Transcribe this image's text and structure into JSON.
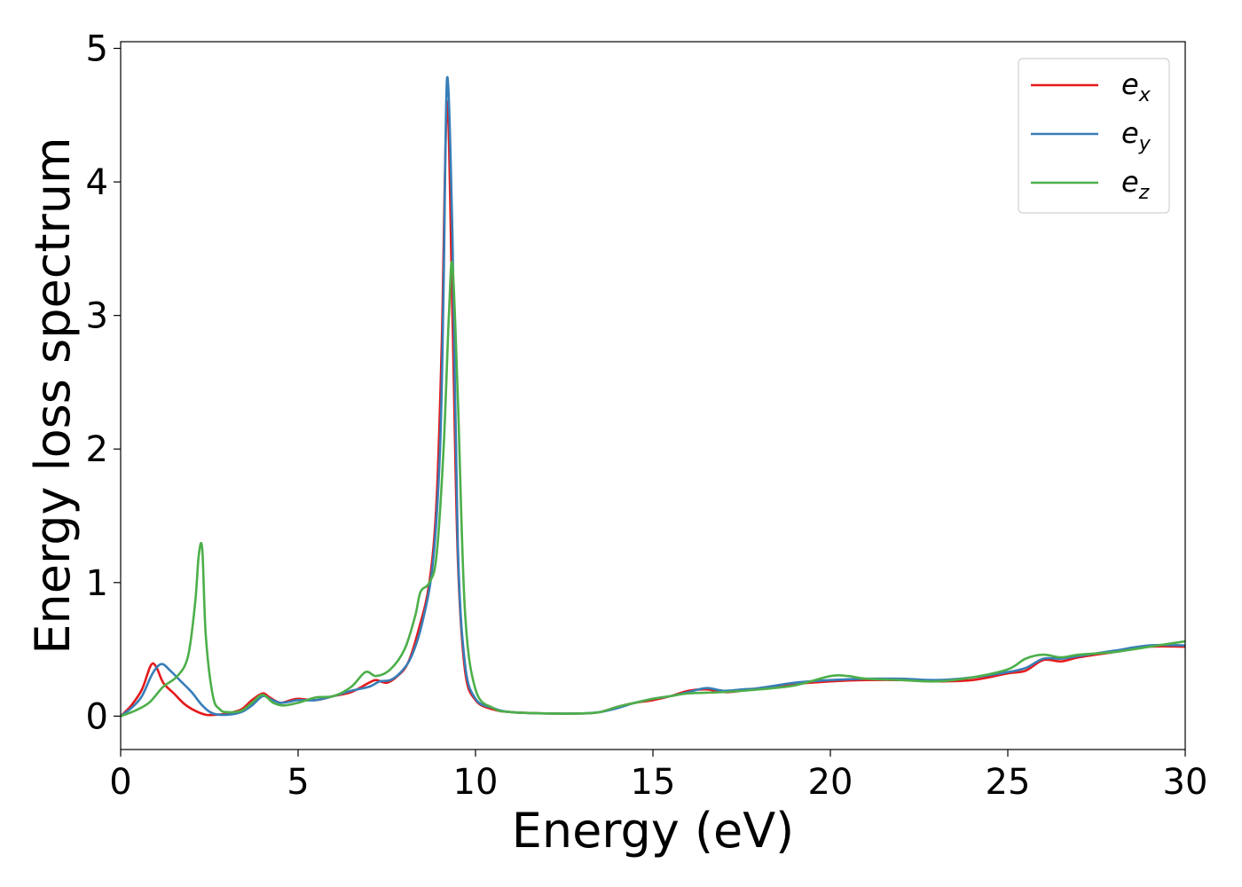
{
  "chart_data": {
    "type": "line",
    "title": "",
    "xlabel": "Energy (eV)",
    "ylabel": "Energy loss spectrum",
    "xlim": [
      0,
      30
    ],
    "ylim": [
      -0.25,
      5.05
    ],
    "xticks": [
      0,
      5,
      10,
      15,
      20,
      25,
      30
    ],
    "yticks": [
      0,
      1,
      2,
      3,
      4,
      5
    ],
    "grid": false,
    "legend_position": "top-right",
    "series": [
      {
        "name": "e_x",
        "label_base": "e",
        "label_sub": "x",
        "color": "#e41a1c",
        "x": [
          0,
          0.3,
          0.6,
          0.85,
          1.0,
          1.2,
          1.5,
          1.8,
          2.1,
          2.4,
          2.7,
          3.0,
          3.4,
          3.7,
          4.0,
          4.2,
          4.5,
          4.8,
          5.0,
          5.5,
          6.0,
          6.5,
          7.0,
          7.2,
          7.5,
          7.8,
          8.1,
          8.4,
          8.7,
          8.9,
          9.05,
          9.2,
          9.35,
          9.5,
          9.7,
          10.0,
          10.5,
          11.0,
          12.0,
          13.0,
          13.5,
          14.0,
          14.5,
          15.0,
          15.5,
          16.0,
          16.5,
          17.0,
          17.5,
          18.0,
          19.0,
          20.0,
          21.0,
          22.0,
          23.0,
          24.0,
          25.0,
          25.5,
          26.0,
          26.5,
          27.0,
          28.0,
          29.0,
          30.0
        ],
        "values": [
          0.0,
          0.08,
          0.2,
          0.38,
          0.37,
          0.25,
          0.17,
          0.09,
          0.04,
          0.01,
          0.01,
          0.02,
          0.05,
          0.12,
          0.17,
          0.14,
          0.1,
          0.12,
          0.13,
          0.12,
          0.15,
          0.18,
          0.25,
          0.27,
          0.25,
          0.3,
          0.4,
          0.65,
          1.0,
          1.6,
          2.8,
          4.6,
          3.0,
          1.2,
          0.35,
          0.12,
          0.05,
          0.03,
          0.02,
          0.02,
          0.03,
          0.07,
          0.1,
          0.12,
          0.15,
          0.19,
          0.2,
          0.18,
          0.19,
          0.21,
          0.24,
          0.26,
          0.27,
          0.27,
          0.26,
          0.27,
          0.32,
          0.34,
          0.42,
          0.41,
          0.44,
          0.48,
          0.52,
          0.52
        ]
      },
      {
        "name": "e_y",
        "label_base": "e",
        "label_sub": "y",
        "color": "#377eb8",
        "x": [
          0,
          0.3,
          0.6,
          0.9,
          1.15,
          1.4,
          1.7,
          2.0,
          2.3,
          2.6,
          3.0,
          3.4,
          3.7,
          4.0,
          4.2,
          4.5,
          4.8,
          5.0,
          5.5,
          6.0,
          6.5,
          7.0,
          7.3,
          7.6,
          7.9,
          8.2,
          8.5,
          8.8,
          9.0,
          9.1,
          9.2,
          9.35,
          9.5,
          9.7,
          10.0,
          10.5,
          11.0,
          12.0,
          13.0,
          13.5,
          14.0,
          14.5,
          15.0,
          15.5,
          16.0,
          16.5,
          17.0,
          17.5,
          18.0,
          19.0,
          20.0,
          21.0,
          22.0,
          23.0,
          24.0,
          25.0,
          25.5,
          26.0,
          26.5,
          27.0,
          28.0,
          29.0,
          30.0
        ],
        "values": [
          0.0,
          0.06,
          0.15,
          0.32,
          0.39,
          0.34,
          0.26,
          0.18,
          0.08,
          0.02,
          0.01,
          0.03,
          0.08,
          0.15,
          0.13,
          0.1,
          0.11,
          0.12,
          0.12,
          0.15,
          0.19,
          0.22,
          0.26,
          0.27,
          0.33,
          0.45,
          0.7,
          1.15,
          2.0,
          3.2,
          4.78,
          3.6,
          1.3,
          0.4,
          0.13,
          0.06,
          0.03,
          0.02,
          0.02,
          0.03,
          0.06,
          0.1,
          0.13,
          0.15,
          0.18,
          0.21,
          0.19,
          0.2,
          0.21,
          0.25,
          0.27,
          0.28,
          0.28,
          0.27,
          0.29,
          0.33,
          0.36,
          0.43,
          0.43,
          0.45,
          0.49,
          0.53,
          0.53
        ]
      },
      {
        "name": "e_z",
        "label_base": "e",
        "label_sub": "z",
        "color": "#4daf4a",
        "x": [
          0,
          0.4,
          0.8,
          1.2,
          1.6,
          1.9,
          2.1,
          2.2,
          2.3,
          2.4,
          2.6,
          2.8,
          3.0,
          3.4,
          3.7,
          4.0,
          4.3,
          4.6,
          5.0,
          5.5,
          6.0,
          6.5,
          6.9,
          7.2,
          7.6,
          8.0,
          8.3,
          8.45,
          8.7,
          8.9,
          9.1,
          9.25,
          9.35,
          9.5,
          9.7,
          10.0,
          10.5,
          11.0,
          12.0,
          13.0,
          13.5,
          14.0,
          14.5,
          15.0,
          15.5,
          16.0,
          17.0,
          18.0,
          19.0,
          20.0,
          20.5,
          21.0,
          22.0,
          23.0,
          24.0,
          25.0,
          25.5,
          26.0,
          26.5,
          27.0,
          28.0,
          29.0,
          30.0
        ],
        "values": [
          0.0,
          0.04,
          0.1,
          0.22,
          0.3,
          0.45,
          0.85,
          1.2,
          1.25,
          0.6,
          0.15,
          0.05,
          0.03,
          0.04,
          0.1,
          0.16,
          0.1,
          0.08,
          0.1,
          0.14,
          0.15,
          0.22,
          0.33,
          0.3,
          0.35,
          0.5,
          0.75,
          0.93,
          1.0,
          1.2,
          2.0,
          3.0,
          3.38,
          2.4,
          0.8,
          0.2,
          0.06,
          0.03,
          0.02,
          0.02,
          0.03,
          0.07,
          0.1,
          0.13,
          0.15,
          0.17,
          0.18,
          0.2,
          0.23,
          0.3,
          0.3,
          0.28,
          0.27,
          0.26,
          0.29,
          0.35,
          0.43,
          0.46,
          0.44,
          0.46,
          0.48,
          0.52,
          0.56
        ]
      }
    ]
  }
}
